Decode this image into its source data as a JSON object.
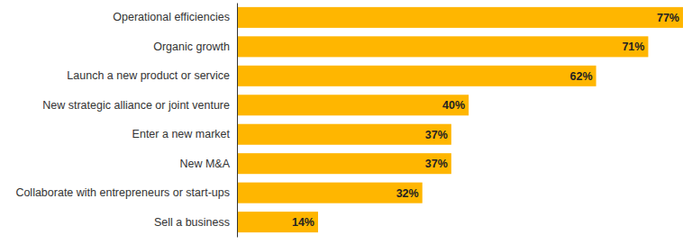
{
  "chart_data": {
    "type": "bar",
    "orientation": "horizontal",
    "categories": [
      "Operational efficiencies",
      "Organic growth",
      "Launch a new product or service",
      "New strategic alliance or joint venture",
      "Enter a new market",
      "New M&A",
      "Collaborate with entrepreneurs or start-ups",
      "Sell a business"
    ],
    "values": [
      77,
      71,
      62,
      40,
      37,
      37,
      32,
      14
    ],
    "value_labels": [
      "77%",
      "71%",
      "62%",
      "40%",
      "37%",
      "37%",
      "32%",
      "14%"
    ],
    "color": "#ffb600",
    "xlim": [
      0,
      77
    ],
    "data_labels": true,
    "tick_labels": "y",
    "grid": false
  }
}
